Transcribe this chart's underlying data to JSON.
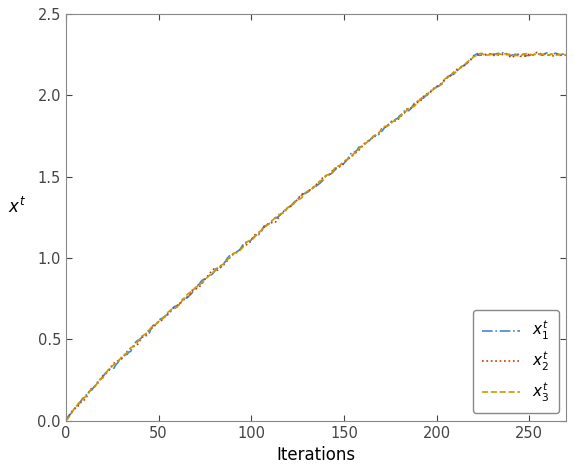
{
  "title": "",
  "xlabel": "Iterations",
  "ylabel": "$x^t$",
  "xlim": [
    0,
    270
  ],
  "ylim": [
    0,
    2.5
  ],
  "xticks": [
    0,
    50,
    100,
    150,
    200,
    250
  ],
  "yticks": [
    0,
    0.5,
    1.0,
    1.5,
    2.0,
    2.5
  ],
  "n_iterations": 270,
  "plateau_value": 2.25,
  "line1_color": "#4488CC",
  "line2_color": "#CC3300",
  "line3_color": "#CC9900",
  "line1_style": "-.",
  "line2_style": ":",
  "line3_style": "--",
  "line_width": 1.2,
  "legend_labels": [
    "$x_1^t$",
    "$x_2^t$",
    "$x_3^t$"
  ],
  "legend_loc": "lower right",
  "figsize": [
    5.74,
    4.72
  ],
  "dpi": 100,
  "spine_color": "#888888",
  "tick_color": "#444444"
}
